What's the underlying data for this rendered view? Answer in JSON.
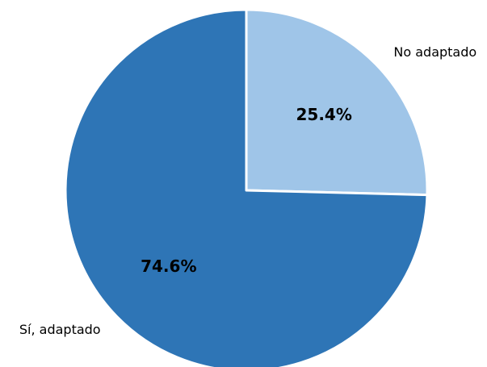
{
  "chart_data": {
    "type": "pie",
    "title": "",
    "categories": [
      "No adaptado",
      "Sí, adaptado"
    ],
    "values": [
      25.4,
      74.6
    ],
    "value_labels": [
      "25.4%",
      "74.6%"
    ],
    "colors": [
      "#9fc5e8",
      "#2e75b6"
    ],
    "start_angle": "12 o'clock",
    "direction": "clockwise",
    "legend": "none"
  }
}
